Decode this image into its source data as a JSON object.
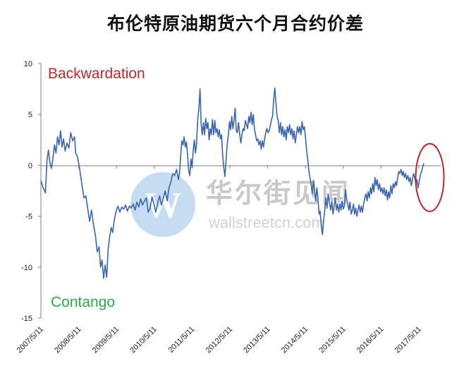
{
  "chart_data": {
    "type": "line",
    "title": "布伦特原油期货六个月合约价差",
    "xlabel": "",
    "ylabel": "",
    "ylim": [
      -15,
      10
    ],
    "yticks": [
      "10",
      "5",
      "0",
      "-5",
      "-10",
      "-15"
    ],
    "xticks": [
      "2007/5/11",
      "2008/5/11",
      "2009/5/11",
      "2010/5/11",
      "2011/5/11",
      "2012/5/11",
      "2013/5/11",
      "2014/5/11",
      "2015/5/11",
      "2016/5/11",
      "2017/5/11"
    ],
    "xlim": [
      2007.36,
      2017.95
    ],
    "grid": false,
    "annotations": {
      "backwardation": "Backwardation",
      "contango": "Contango"
    },
    "highlight": {
      "shape": "ellipse",
      "color": "#c0282d",
      "x_center": 2017.65,
      "y_center": -1.2
    },
    "series": [
      {
        "color": "#3a66b0",
        "points": [
          [
            2007.36,
            -1.5
          ],
          [
            2007.42,
            -2.2
          ],
          [
            2007.48,
            -2.7
          ],
          [
            2007.52,
            0.5
          ],
          [
            2007.56,
            1.5
          ],
          [
            2007.6,
            0.2
          ],
          [
            2007.64,
            -0.3
          ],
          [
            2007.68,
            0.8
          ],
          [
            2007.72,
            2.0
          ],
          [
            2007.76,
            1.2
          ],
          [
            2007.8,
            2.8
          ],
          [
            2007.84,
            2.0
          ],
          [
            2007.88,
            3.4
          ],
          [
            2007.92,
            1.8
          ],
          [
            2007.96,
            2.6
          ],
          [
            2008.0,
            1.4
          ],
          [
            2008.05,
            2.2
          ],
          [
            2008.1,
            1.7
          ],
          [
            2008.15,
            3.2
          ],
          [
            2008.2,
            2.4
          ],
          [
            2008.25,
            2.8
          ],
          [
            2008.28,
            1.2
          ],
          [
            2008.32,
            0.9
          ],
          [
            2008.36,
            0.2
          ],
          [
            2008.4,
            -0.7
          ],
          [
            2008.45,
            -2.0
          ],
          [
            2008.5,
            -3.2
          ],
          [
            2008.55,
            -3.0
          ],
          [
            2008.6,
            -4.3
          ],
          [
            2008.65,
            -5.5
          ],
          [
            2008.7,
            -4.4
          ],
          [
            2008.75,
            -5.8
          ],
          [
            2008.8,
            -6.8
          ],
          [
            2008.85,
            -8.5
          ],
          [
            2008.9,
            -8.0
          ],
          [
            2008.94,
            -10.0
          ],
          [
            2008.98,
            -9.3
          ],
          [
            2009.02,
            -11.1
          ],
          [
            2009.06,
            -9.8
          ],
          [
            2009.1,
            -11.0
          ],
          [
            2009.14,
            -8.2
          ],
          [
            2009.18,
            -7.0
          ],
          [
            2009.22,
            -6.1
          ],
          [
            2009.26,
            -6.6
          ],
          [
            2009.3,
            -5.4
          ],
          [
            2009.35,
            -4.5
          ],
          [
            2009.4,
            -4.0
          ],
          [
            2009.45,
            -4.6
          ],
          [
            2009.5,
            -4.1
          ],
          [
            2009.55,
            -4.3
          ],
          [
            2009.6,
            -3.9
          ],
          [
            2009.65,
            -4.5
          ],
          [
            2009.7,
            -4.0
          ],
          [
            2009.75,
            -4.2
          ],
          [
            2009.8,
            -3.8
          ],
          [
            2009.85,
            -4.4
          ],
          [
            2009.9,
            -3.6
          ],
          [
            2009.95,
            -4.1
          ],
          [
            2010.0,
            -3.3
          ],
          [
            2010.05,
            -3.9
          ],
          [
            2010.1,
            -3.5
          ],
          [
            2010.15,
            -3.2
          ],
          [
            2010.2,
            -4.6
          ],
          [
            2010.25,
            -4.2
          ],
          [
            2010.3,
            -3.1
          ],
          [
            2010.35,
            -3.8
          ],
          [
            2010.4,
            -4.6
          ],
          [
            2010.45,
            -3.7
          ],
          [
            2010.5,
            -3.0
          ],
          [
            2010.55,
            -3.9
          ],
          [
            2010.6,
            -3.2
          ],
          [
            2010.65,
            -2.5
          ],
          [
            2010.7,
            -3.5
          ],
          [
            2010.75,
            -2.2
          ],
          [
            2010.8,
            -1.6
          ],
          [
            2010.85,
            -0.8
          ],
          [
            2010.9,
            -1.0
          ],
          [
            2010.95,
            -0.4
          ],
          [
            2011.0,
            -1.4
          ],
          [
            2011.03,
            -0.7
          ],
          [
            2011.06,
            1.0
          ],
          [
            2011.09,
            2.4
          ],
          [
            2011.12,
            2.0
          ],
          [
            2011.15,
            2.8
          ],
          [
            2011.18,
            1.8
          ],
          [
            2011.21,
            2.3
          ],
          [
            2011.24,
            1.0
          ],
          [
            2011.27,
            -0.5
          ],
          [
            2011.3,
            -1.0
          ],
          [
            2011.33,
            0.6
          ],
          [
            2011.36,
            -0.2
          ],
          [
            2011.39,
            1.5
          ],
          [
            2011.42,
            2.5
          ],
          [
            2011.45,
            1.2
          ],
          [
            2011.48,
            2.2
          ],
          [
            2011.51,
            4.5
          ],
          [
            2011.54,
            5.5
          ],
          [
            2011.57,
            7.5
          ],
          [
            2011.6,
            4.0
          ],
          [
            2011.63,
            3.0
          ],
          [
            2011.66,
            4.2
          ],
          [
            2011.69,
            3.0
          ],
          [
            2011.72,
            4.6
          ],
          [
            2011.75,
            3.6
          ],
          [
            2011.78,
            4.2
          ],
          [
            2011.81,
            2.5
          ],
          [
            2011.84,
            3.6
          ],
          [
            2011.87,
            3.0
          ],
          [
            2011.9,
            4.5
          ],
          [
            2011.93,
            3.0
          ],
          [
            2011.96,
            4.4
          ],
          [
            2011.99,
            3.2
          ],
          [
            2012.02,
            3.6
          ],
          [
            2012.05,
            2.8
          ],
          [
            2012.08,
            3.5
          ],
          [
            2012.11,
            2.6
          ],
          [
            2012.14,
            3.0
          ],
          [
            2012.17,
            1.0
          ],
          [
            2012.2,
            -0.2
          ],
          [
            2012.23,
            -1.1
          ],
          [
            2012.26,
            0.5
          ],
          [
            2012.29,
            2.0
          ],
          [
            2012.32,
            3.0
          ],
          [
            2012.35,
            4.3
          ],
          [
            2012.38,
            3.5
          ],
          [
            2012.41,
            4.8
          ],
          [
            2012.44,
            3.6
          ],
          [
            2012.47,
            4.4
          ],
          [
            2012.5,
            5.6
          ],
          [
            2012.53,
            3.4
          ],
          [
            2012.56,
            3.2
          ],
          [
            2012.59,
            4.2
          ],
          [
            2012.62,
            3.1
          ],
          [
            2012.65,
            2.2
          ],
          [
            2012.68,
            3.0
          ],
          [
            2012.71,
            3.6
          ],
          [
            2012.74,
            3.4
          ],
          [
            2012.77,
            4.4
          ],
          [
            2012.8,
            4.0
          ],
          [
            2012.83,
            3.6
          ],
          [
            2012.86,
            4.8
          ],
          [
            2012.89,
            4.2
          ],
          [
            2012.92,
            5.2
          ],
          [
            2012.95,
            4.0
          ],
          [
            2012.98,
            5.0
          ],
          [
            2013.01,
            3.6
          ],
          [
            2013.04,
            3.0
          ],
          [
            2013.07,
            2.4
          ],
          [
            2013.1,
            2.6
          ],
          [
            2013.13,
            2.0
          ],
          [
            2013.16,
            2.4
          ],
          [
            2013.19,
            1.6
          ],
          [
            2013.22,
            2.4
          ],
          [
            2013.25,
            1.8
          ],
          [
            2013.28,
            2.6
          ],
          [
            2013.31,
            3.2
          ],
          [
            2013.34,
            3.6
          ],
          [
            2013.37,
            3.2
          ],
          [
            2013.4,
            3.4
          ],
          [
            2013.43,
            3.9
          ],
          [
            2013.46,
            4.5
          ],
          [
            2013.49,
            4.8
          ],
          [
            2013.52,
            6.5
          ],
          [
            2013.55,
            7.6
          ],
          [
            2013.58,
            6.0
          ],
          [
            2013.61,
            4.8
          ],
          [
            2013.64,
            4.4
          ],
          [
            2013.67,
            3.2
          ],
          [
            2013.7,
            4.2
          ],
          [
            2013.73,
            3.0
          ],
          [
            2013.76,
            3.8
          ],
          [
            2013.79,
            2.8
          ],
          [
            2013.82,
            3.5
          ],
          [
            2013.85,
            2.5
          ],
          [
            2013.88,
            3.8
          ],
          [
            2013.91,
            3.2
          ],
          [
            2013.94,
            4.0
          ],
          [
            2013.97,
            3.0
          ],
          [
            2014.0,
            3.6
          ],
          [
            2014.03,
            2.6
          ],
          [
            2014.06,
            3.4
          ],
          [
            2014.09,
            2.2
          ],
          [
            2014.12,
            3.0
          ],
          [
            2014.15,
            3.8
          ],
          [
            2014.18,
            3.2
          ],
          [
            2014.21,
            3.8
          ],
          [
            2014.24,
            3.0
          ],
          [
            2014.27,
            4.3
          ],
          [
            2014.3,
            3.5
          ],
          [
            2014.33,
            3.8
          ],
          [
            2014.36,
            2.8
          ],
          [
            2014.39,
            1.5
          ],
          [
            2014.42,
            0.6
          ],
          [
            2014.45,
            -0.5
          ],
          [
            2014.48,
            -1.2
          ],
          [
            2014.51,
            -1.8
          ],
          [
            2014.54,
            -2.8
          ],
          [
            2014.57,
            -1.5
          ],
          [
            2014.6,
            -2.5
          ],
          [
            2014.63,
            -3.5
          ],
          [
            2014.66,
            -2.2
          ],
          [
            2014.69,
            -3.2
          ],
          [
            2014.72,
            -4.8
          ],
          [
            2014.75,
            -4.5
          ],
          [
            2014.78,
            -6.0
          ],
          [
            2014.81,
            -6.8
          ],
          [
            2014.84,
            -5.5
          ],
          [
            2014.87,
            -4.5
          ],
          [
            2014.9,
            -3.2
          ],
          [
            2014.93,
            -4.2
          ],
          [
            2014.96,
            -2.8
          ],
          [
            2015.0,
            -3.8
          ],
          [
            2015.03,
            -4.4
          ],
          [
            2015.06,
            -3.5
          ],
          [
            2015.09,
            -4.8
          ],
          [
            2015.12,
            -4.0
          ],
          [
            2015.15,
            -3.2
          ],
          [
            2015.18,
            -4.4
          ],
          [
            2015.21,
            -3.8
          ],
          [
            2015.24,
            -4.6
          ],
          [
            2015.27,
            -3.8
          ],
          [
            2015.3,
            -4.4
          ],
          [
            2015.33,
            -3.5
          ],
          [
            2015.36,
            -4.3
          ],
          [
            2015.39,
            -4.0
          ],
          [
            2015.42,
            -2.4
          ],
          [
            2015.45,
            -3.3
          ],
          [
            2015.48,
            -3.8
          ],
          [
            2015.51,
            -4.4
          ],
          [
            2015.54,
            -3.6
          ],
          [
            2015.57,
            -4.8
          ],
          [
            2015.6,
            -4.4
          ],
          [
            2015.63,
            -3.8
          ],
          [
            2015.66,
            -4.8
          ],
          [
            2015.69,
            -4.2
          ],
          [
            2015.72,
            -5.0
          ],
          [
            2015.75,
            -4.4
          ],
          [
            2015.78,
            -3.9
          ],
          [
            2015.81,
            -4.6
          ],
          [
            2015.84,
            -4.0
          ],
          [
            2015.87,
            -4.6
          ],
          [
            2015.9,
            -3.8
          ],
          [
            2015.93,
            -3.2
          ],
          [
            2015.96,
            -2.8
          ],
          [
            2015.99,
            -3.5
          ],
          [
            2016.02,
            -2.6
          ],
          [
            2016.05,
            -3.2
          ],
          [
            2016.08,
            -2.2
          ],
          [
            2016.11,
            -2.8
          ],
          [
            2016.14,
            -1.8
          ],
          [
            2016.17,
            -2.6
          ],
          [
            2016.2,
            -1.2
          ],
          [
            2016.23,
            -2.0
          ],
          [
            2016.26,
            -1.4
          ],
          [
            2016.29,
            -2.4
          ],
          [
            2016.32,
            -1.8
          ],
          [
            2016.35,
            -2.6
          ],
          [
            2016.38,
            -2.2
          ],
          [
            2016.41,
            -2.8
          ],
          [
            2016.44,
            -2.2
          ],
          [
            2016.47,
            -3.0
          ],
          [
            2016.5,
            -2.4
          ],
          [
            2016.53,
            -3.4
          ],
          [
            2016.56,
            -2.6
          ],
          [
            2016.59,
            -3.2
          ],
          [
            2016.62,
            -2.0
          ],
          [
            2016.65,
            -2.8
          ],
          [
            2016.68,
            -1.8
          ],
          [
            2016.71,
            -2.2
          ],
          [
            2016.74,
            -1.6
          ],
          [
            2016.77,
            -2.0
          ],
          [
            2016.8,
            -1.2
          ],
          [
            2016.83,
            -0.6
          ],
          [
            2016.86,
            -0.8
          ],
          [
            2016.89,
            -0.4
          ],
          [
            2016.92,
            -1.0
          ],
          [
            2016.95,
            -0.6
          ],
          [
            2016.98,
            -1.2
          ],
          [
            2017.01,
            -0.8
          ],
          [
            2017.04,
            -1.4
          ],
          [
            2017.07,
            -1.0
          ],
          [
            2017.1,
            -1.6
          ],
          [
            2017.13,
            -1.2
          ],
          [
            2017.16,
            -2.0
          ],
          [
            2017.19,
            -1.4
          ],
          [
            2017.22,
            -0.8
          ],
          [
            2017.25,
            -1.2
          ],
          [
            2017.28,
            -1.8
          ],
          [
            2017.31,
            -1.4
          ],
          [
            2017.34,
            -2.2
          ],
          [
            2017.37,
            -1.6
          ],
          [
            2017.4,
            -1.0
          ],
          [
            2017.43,
            -0.6
          ],
          [
            2017.46,
            -0.2
          ],
          [
            2017.49,
            0.2
          ]
        ]
      }
    ]
  },
  "watermark": {
    "brand_cn": "华尔街见闻",
    "brand_en": "wallstreetcn.com",
    "logo_letter": "W"
  }
}
